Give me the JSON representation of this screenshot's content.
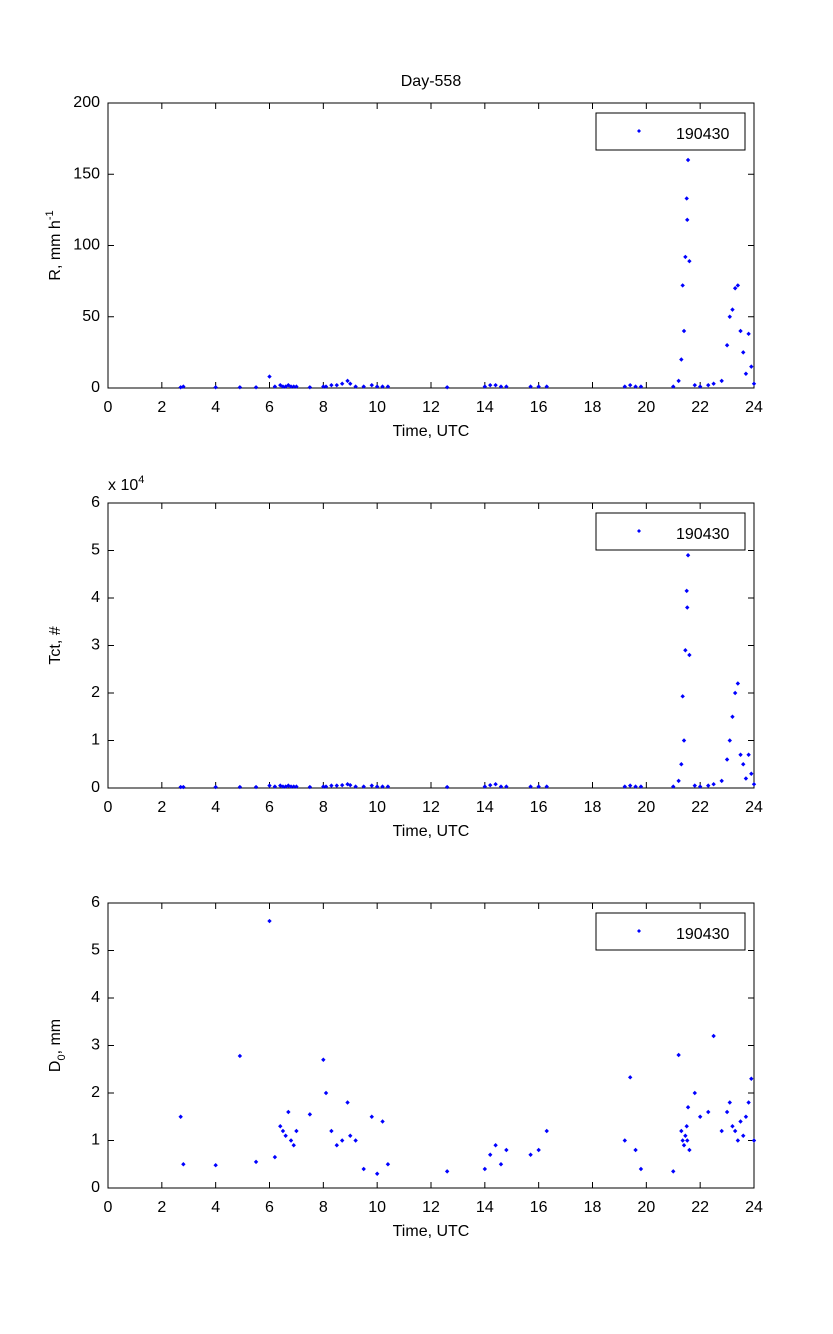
{
  "chart_data": [
    {
      "type": "scatter",
      "title": "Day-558",
      "xlabel": "Time, UTC",
      "ylabel": [
        {
          "text": "R, mm h"
        },
        {
          "text": "-1",
          "baseline": "super"
        }
      ],
      "xlim": [
        0,
        24
      ],
      "xticks": [
        0,
        2,
        4,
        6,
        8,
        10,
        12,
        14,
        16,
        18,
        20,
        22,
        24
      ],
      "ylim": [
        0,
        200
      ],
      "yticks": [
        0,
        50,
        100,
        150,
        200
      ],
      "legend": "upper right",
      "x": [
        2.7,
        2.8,
        4.0,
        4.9,
        5.5,
        6.0,
        6.2,
        6.4,
        6.5,
        6.6,
        6.7,
        6.8,
        6.9,
        7.0,
        7.5,
        8.0,
        8.1,
        8.3,
        8.5,
        8.7,
        8.9,
        9.0,
        9.2,
        9.5,
        9.8,
        10.0,
        10.2,
        10.4,
        12.6,
        14.0,
        14.2,
        14.4,
        14.6,
        14.8,
        15.7,
        16.0,
        16.3,
        19.2,
        19.4,
        19.6,
        19.8,
        21.0,
        21.2,
        21.3,
        21.35,
        21.4,
        21.45,
        21.5,
        21.52,
        21.55,
        21.6,
        21.8,
        22.0,
        22.3,
        22.5,
        22.8,
        23.0,
        23.1,
        23.2,
        23.3,
        23.4,
        23.5,
        23.6,
        23.7,
        23.8,
        23.9,
        24.0
      ],
      "series": [
        {
          "name": "190430",
          "color": "#0000ff",
          "values": [
            0.5,
            1,
            0.5,
            0.5,
            0.5,
            8,
            1,
            2,
            1,
            1,
            2,
            1,
            1,
            1,
            0.5,
            1,
            1,
            2,
            2,
            3,
            5,
            3,
            1,
            1,
            2,
            1,
            1,
            1,
            0.5,
            1,
            2,
            2,
            1,
            1,
            1,
            1,
            1,
            1,
            2,
            1,
            1,
            1,
            5,
            20,
            72,
            40,
            92,
            133,
            118,
            160,
            89,
            2,
            1,
            2,
            3,
            5,
            30,
            50,
            55,
            70,
            72,
            40,
            25,
            10,
            38,
            15,
            3
          ]
        }
      ]
    },
    {
      "type": "scatter",
      "xlabel": "Time, UTC",
      "ylabel": [
        {
          "text": "Tct, #"
        }
      ],
      "y_exponent_label": [
        {
          "text": "x 10"
        },
        {
          "text": "4",
          "baseline": "super"
        }
      ],
      "xlim": [
        0,
        24
      ],
      "xticks": [
        0,
        2,
        4,
        6,
        8,
        10,
        12,
        14,
        16,
        18,
        20,
        22,
        24
      ],
      "ylim": [
        0,
        6
      ],
      "yticks": [
        0,
        1,
        2,
        3,
        4,
        5,
        6
      ],
      "legend": "upper right",
      "x": [
        2.7,
        2.8,
        4.0,
        4.9,
        5.5,
        6.0,
        6.2,
        6.4,
        6.5,
        6.6,
        6.7,
        6.8,
        6.9,
        7.0,
        7.5,
        8.0,
        8.1,
        8.3,
        8.5,
        8.7,
        8.9,
        9.0,
        9.2,
        9.5,
        9.8,
        10.0,
        10.2,
        10.4,
        12.6,
        14.0,
        14.2,
        14.4,
        14.6,
        14.8,
        15.7,
        16.0,
        16.3,
        19.2,
        19.4,
        19.6,
        19.8,
        21.0,
        21.2,
        21.3,
        21.35,
        21.4,
        21.45,
        21.5,
        21.52,
        21.55,
        21.6,
        21.8,
        22.0,
        22.3,
        22.5,
        22.8,
        23.0,
        23.1,
        23.2,
        23.3,
        23.4,
        23.5,
        23.6,
        23.7,
        23.8,
        23.9,
        24.0
      ],
      "series": [
        {
          "name": "190430",
          "color": "#0000ff",
          "values": [
            0.02,
            0.02,
            0.02,
            0.02,
            0.02,
            0.05,
            0.03,
            0.05,
            0.03,
            0.03,
            0.05,
            0.03,
            0.03,
            0.03,
            0.02,
            0.03,
            0.03,
            0.05,
            0.05,
            0.06,
            0.08,
            0.06,
            0.03,
            0.03,
            0.05,
            0.03,
            0.03,
            0.03,
            0.02,
            0.03,
            0.06,
            0.08,
            0.03,
            0.03,
            0.03,
            0.03,
            0.03,
            0.03,
            0.05,
            0.03,
            0.03,
            0.03,
            0.15,
            0.5,
            1.93,
            1.0,
            2.9,
            4.15,
            3.8,
            4.9,
            2.8,
            0.05,
            0.03,
            0.05,
            0.08,
            0.15,
            0.6,
            1.0,
            1.5,
            2.0,
            2.2,
            0.7,
            0.5,
            0.2,
            0.7,
            0.3,
            0.08
          ]
        }
      ]
    },
    {
      "type": "scatter",
      "xlabel": "Time, UTC",
      "ylabel": [
        {
          "text": "D"
        },
        {
          "text": "0",
          "baseline": "sub"
        },
        {
          "text": ", mm"
        }
      ],
      "xlim": [
        0,
        24
      ],
      "xticks": [
        0,
        2,
        4,
        6,
        8,
        10,
        12,
        14,
        16,
        18,
        20,
        22,
        24
      ],
      "ylim": [
        0,
        6
      ],
      "yticks": [
        0,
        1,
        2,
        3,
        4,
        5,
        6
      ],
      "legend": "upper right",
      "x": [
        2.7,
        2.8,
        4.0,
        4.9,
        5.5,
        6.0,
        6.2,
        6.4,
        6.5,
        6.6,
        6.7,
        6.8,
        6.9,
        7.0,
        7.5,
        8.0,
        8.1,
        8.3,
        8.5,
        8.7,
        8.9,
        9.0,
        9.2,
        9.5,
        9.8,
        10.0,
        10.2,
        10.4,
        12.6,
        14.0,
        14.2,
        14.4,
        14.6,
        14.8,
        15.7,
        16.0,
        16.3,
        19.2,
        19.4,
        19.6,
        19.8,
        21.0,
        21.2,
        21.3,
        21.35,
        21.4,
        21.45,
        21.5,
        21.52,
        21.55,
        21.6,
        21.8,
        22.0,
        22.3,
        22.5,
        22.8,
        23.0,
        23.1,
        23.2,
        23.3,
        23.4,
        23.5,
        23.6,
        23.7,
        23.8,
        23.9,
        24.0
      ],
      "series": [
        {
          "name": "190430",
          "color": "#0000ff",
          "values": [
            1.5,
            0.5,
            0.48,
            2.78,
            0.55,
            5.62,
            0.65,
            1.3,
            1.2,
            1.1,
            1.6,
            1.0,
            0.9,
            1.2,
            1.55,
            2.7,
            2.0,
            1.2,
            0.9,
            1.0,
            1.8,
            1.1,
            1.0,
            0.4,
            1.5,
            0.3,
            1.4,
            0.5,
            0.35,
            0.4,
            0.7,
            0.9,
            0.5,
            0.8,
            0.7,
            0.8,
            1.2,
            1.0,
            2.33,
            0.8,
            0.4,
            0.35,
            2.8,
            1.2,
            1.0,
            0.9,
            1.1,
            1.3,
            1.0,
            1.7,
            0.8,
            2.0,
            1.5,
            1.6,
            3.2,
            1.2,
            1.6,
            1.8,
            1.3,
            1.2,
            1.0,
            1.4,
            1.1,
            1.5,
            1.8,
            2.3,
            1.0
          ]
        }
      ]
    }
  ]
}
